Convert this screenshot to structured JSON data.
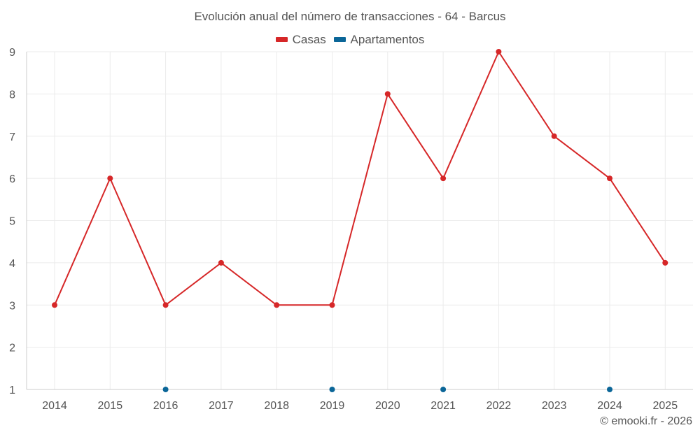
{
  "chart_data": {
    "type": "line",
    "title": "Evolución anual del número de transacciones - 64 - Barcus",
    "categories": [
      "2014",
      "2015",
      "2016",
      "2017",
      "2018",
      "2019",
      "2020",
      "2021",
      "2022",
      "2023",
      "2024",
      "2025"
    ],
    "series": [
      {
        "name": "Casas",
        "color": "#d62728",
        "values": [
          3,
          6,
          3,
          4,
          3,
          3,
          8,
          6,
          9,
          7,
          6,
          4
        ]
      },
      {
        "name": "Apartamentos",
        "color": "#0b6698",
        "values": [
          null,
          null,
          1,
          null,
          null,
          1,
          null,
          1,
          null,
          null,
          1,
          null
        ]
      }
    ],
    "ylim": [
      1,
      9
    ],
    "yticks": [
      1,
      2,
      3,
      4,
      5,
      6,
      7,
      8,
      9
    ],
    "xlabel": "",
    "ylabel": "",
    "grid": true,
    "legend_position": "top-center"
  },
  "legend": [
    {
      "label": "Casas",
      "color": "#d62728"
    },
    {
      "label": "Apartamentos",
      "color": "#0b6698"
    }
  ],
  "credit": "© emooki.fr - 2026"
}
